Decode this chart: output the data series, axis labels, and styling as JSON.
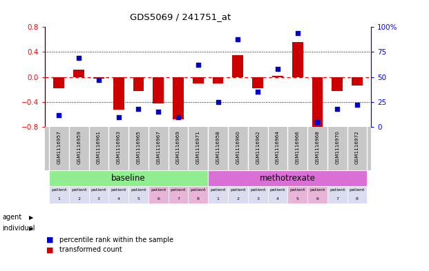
{
  "title": "GDS5069 / 241751_at",
  "samples": [
    "GSM1116957",
    "GSM1116959",
    "GSM1116961",
    "GSM1116963",
    "GSM1116965",
    "GSM1116967",
    "GSM1116969",
    "GSM1116971",
    "GSM1116958",
    "GSM1116960",
    "GSM1116962",
    "GSM1116964",
    "GSM1116966",
    "GSM1116968",
    "GSM1116970",
    "GSM1116972"
  ],
  "transformed_count": [
    -0.18,
    0.12,
    -0.03,
    -0.52,
    -0.22,
    -0.42,
    -0.68,
    -0.1,
    -0.1,
    0.35,
    -0.18,
    0.02,
    0.56,
    -0.82,
    -0.22,
    -0.14
  ],
  "percentile_rank": [
    12,
    69,
    47,
    10,
    18,
    15,
    10,
    62,
    25,
    88,
    35,
    58,
    94,
    5,
    18,
    22
  ],
  "ylim_left": [
    -0.8,
    0.8
  ],
  "ylim_right": [
    0,
    100
  ],
  "yticks_left": [
    -0.8,
    -0.4,
    0.0,
    0.4,
    0.8
  ],
  "yticks_right": [
    0,
    25,
    50,
    75,
    100
  ],
  "ytick_labels_right": [
    "0",
    "25",
    "50",
    "75",
    "100%"
  ],
  "hlines": [
    -0.4,
    0.0,
    0.4
  ],
  "agent_groups": [
    {
      "label": "baseline",
      "start": 0,
      "end": 8,
      "color": "#90ee90"
    },
    {
      "label": "methotrexate",
      "start": 8,
      "end": 16,
      "color": "#da70d6"
    }
  ],
  "individual_labels": [
    "patient\n1",
    "patient\n2",
    "patient\n3",
    "patient\n4",
    "patient\n5",
    "patient\n6",
    "patient\n7",
    "patient\n8",
    "patient\n1",
    "patient\n2",
    "patient\n3",
    "patient\n4",
    "patient\n5",
    "patient\n6",
    "patient\n7",
    "patient\n8"
  ],
  "individual_colors": [
    "#dcdcf0",
    "#dcdcf0",
    "#dcdcf0",
    "#dcdcf0",
    "#dcdcf0",
    "#e8b4d8",
    "#e8b4d8",
    "#e8b4d8",
    "#dcdcf0",
    "#dcdcf0",
    "#dcdcf0",
    "#dcdcf0",
    "#e8b4d8",
    "#e8b4d8",
    "#dcdcf0",
    "#dcdcf0"
  ],
  "bar_color": "#cc0000",
  "dot_color": "#0000cc",
  "legend_items": [
    {
      "label": "transformed count",
      "color": "#cc0000"
    },
    {
      "label": "percentile rank within the sample",
      "color": "#0000cc"
    }
  ],
  "bg_color": "#ffffff",
  "zero_line_color": "#ff0000",
  "dot_line_color": "#000000",
  "sample_bg": "#c8c8c8"
}
